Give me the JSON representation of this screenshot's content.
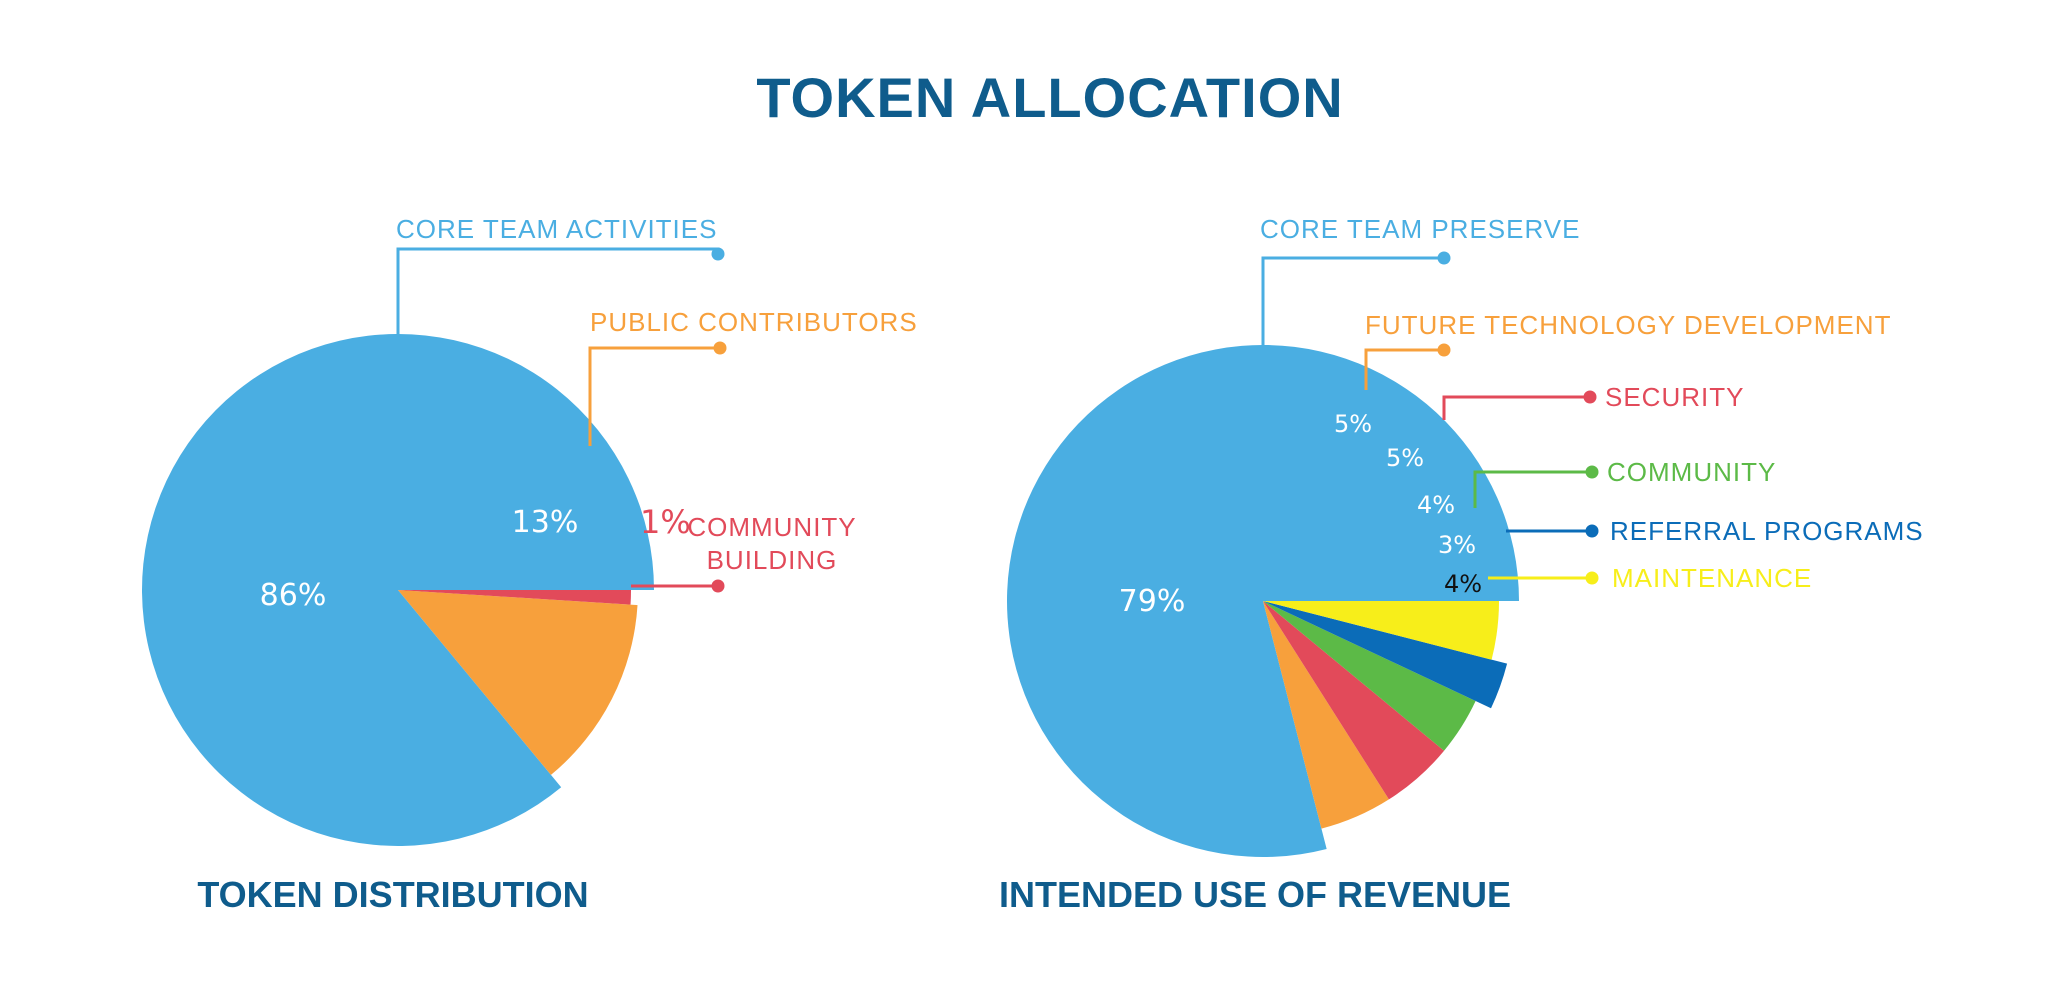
{
  "title": "TOKEN ALLOCATION",
  "chart_data": [
    {
      "type": "pie",
      "title": "TOKEN DISTRIBUTION",
      "series": [
        {
          "label": "CORE TEAM ACTIVITIES",
          "value": 86,
          "value_label": "86%",
          "color": "#4aaee2"
        },
        {
          "label": "PUBLIC CONTRIBUTORS",
          "value": 13,
          "value_label": "13%",
          "color": "#f7a03c"
        },
        {
          "label_lines": [
            "COMMUNITY",
            "BUILDING"
          ],
          "value": 1,
          "value_label": "1%",
          "color": "#e24a5a"
        }
      ]
    },
    {
      "type": "pie",
      "title": "INTENDED USE OF REVENUE",
      "series": [
        {
          "label": "CORE TEAM PRESERVE",
          "value": 79,
          "value_label": "79%",
          "color": "#4aaee2"
        },
        {
          "label": "FUTURE TECHNOLOGY DEVELOPMENT",
          "value": 5,
          "value_label": "5%",
          "color": "#f7a03c"
        },
        {
          "label": "SECURITY",
          "value": 5,
          "value_label": "5%",
          "color": "#e24a5a"
        },
        {
          "label": "COMMUNITY",
          "value": 4,
          "value_label": "4%",
          "color": "#5cba47"
        },
        {
          "label": "REFERRAL PROGRAMS",
          "value": 3,
          "value_label": "3%",
          "color": "#0b6cb8"
        },
        {
          "label": "MAINTENANCE",
          "value": 4,
          "value_label": "4%",
          "color": "#f7ee1a"
        }
      ]
    }
  ]
}
